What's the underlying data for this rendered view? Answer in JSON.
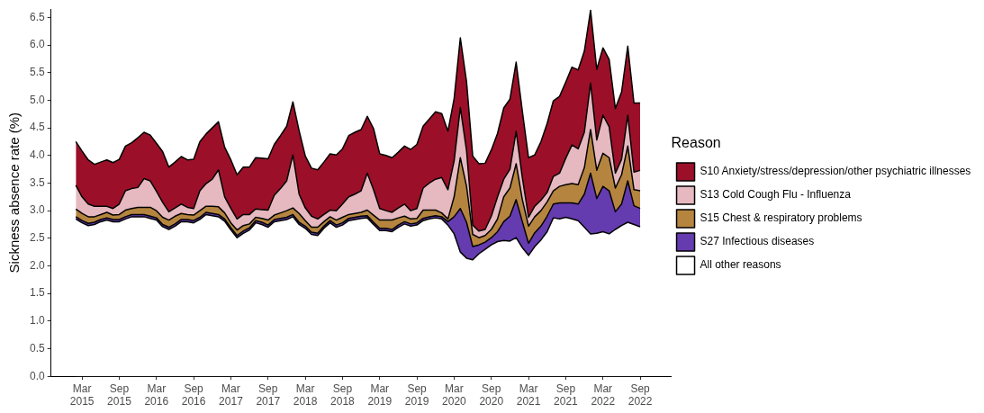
{
  "chart_data": {
    "type": "area",
    "stacked": true,
    "ylabel": "Sickness absence rate (%)",
    "legend_title": "Reason",
    "legend": "right",
    "grid": false,
    "x": [
      "2015-02",
      "2015-03",
      "2015-04",
      "2015-05",
      "2015-06",
      "2015-07",
      "2015-08",
      "2015-09",
      "2015-10",
      "2015-11",
      "2015-12",
      "2016-01",
      "2016-02",
      "2016-03",
      "2016-04",
      "2016-05",
      "2016-06",
      "2016-07",
      "2016-08",
      "2016-09",
      "2016-10",
      "2016-11",
      "2016-12",
      "2017-01",
      "2017-02",
      "2017-03",
      "2017-04",
      "2017-05",
      "2017-06",
      "2017-07",
      "2017-08",
      "2017-09",
      "2017-10",
      "2017-11",
      "2017-12",
      "2018-01",
      "2018-02",
      "2018-03",
      "2018-04",
      "2018-05",
      "2018-06",
      "2018-07",
      "2018-08",
      "2018-09",
      "2018-10",
      "2018-11",
      "2018-12",
      "2019-01",
      "2019-02",
      "2019-03",
      "2019-04",
      "2019-05",
      "2019-06",
      "2019-07",
      "2019-08",
      "2019-09",
      "2019-10",
      "2019-11",
      "2019-12",
      "2020-01",
      "2020-02",
      "2020-03",
      "2020-04",
      "2020-05",
      "2020-06",
      "2020-07",
      "2020-08",
      "2020-09",
      "2020-10",
      "2020-11",
      "2020-12",
      "2021-01",
      "2021-02",
      "2021-03",
      "2021-04",
      "2021-05",
      "2021-06",
      "2021-07",
      "2021-08",
      "2021-09",
      "2021-10",
      "2021-11",
      "2021-12",
      "2022-01",
      "2022-02",
      "2022-03",
      "2022-04",
      "2022-05",
      "2022-06",
      "2022-07",
      "2022-08",
      "2022-09"
    ],
    "xlim": [
      "2014-10",
      "2023-02"
    ],
    "xticks": [
      {
        "value": "2015-03",
        "label": "Mar 2015"
      },
      {
        "value": "2015-09",
        "label": "Sep 2015"
      },
      {
        "value": "2016-03",
        "label": "Mar 2016"
      },
      {
        "value": "2016-09",
        "label": "Sep 2016"
      },
      {
        "value": "2017-03",
        "label": "Mar 2017"
      },
      {
        "value": "2017-09",
        "label": "Sep 2017"
      },
      {
        "value": "2018-03",
        "label": "Mar 2018"
      },
      {
        "value": "2018-09",
        "label": "Sep 2018"
      },
      {
        "value": "2019-03",
        "label": "Mar 2019"
      },
      {
        "value": "2019-09",
        "label": "Sep 2019"
      },
      {
        "value": "2020-03",
        "label": "Mar 2020"
      },
      {
        "value": "2020-09",
        "label": "Sep 2020"
      },
      {
        "value": "2021-03",
        "label": "Mar 2021"
      },
      {
        "value": "2021-09",
        "label": "Sep 2021"
      },
      {
        "value": "2022-03",
        "label": "Mar 2022"
      },
      {
        "value": "2022-09",
        "label": "Sep 2022"
      }
    ],
    "ylim": [
      0,
      6.65
    ],
    "yticks": [
      {
        "value": 0,
        "label": "0.0"
      },
      0.5,
      {
        "value": 1,
        "label": "1.0"
      },
      1.5,
      {
        "value": 2,
        "label": "2.0"
      },
      2.5,
      {
        "value": 3,
        "label": "3.0"
      },
      3.5,
      {
        "value": 4,
        "label": "4.0"
      },
      4.5,
      {
        "value": 5,
        "label": "5.0"
      },
      5.5,
      {
        "value": 6,
        "label": "6.0"
      },
      6.5
    ],
    "series": [
      {
        "name": "All other reasons",
        "color": "#ffffff",
        "values": [
          2.85,
          2.78,
          2.73,
          2.75,
          2.8,
          2.83,
          2.8,
          2.8,
          2.85,
          2.89,
          2.89,
          2.89,
          2.86,
          2.83,
          2.71,
          2.66,
          2.72,
          2.8,
          2.8,
          2.78,
          2.84,
          2.93,
          2.91,
          2.89,
          2.81,
          2.65,
          2.51,
          2.59,
          2.65,
          2.78,
          2.75,
          2.7,
          2.8,
          2.82,
          2.84,
          2.89,
          2.75,
          2.68,
          2.57,
          2.55,
          2.68,
          2.78,
          2.7,
          2.74,
          2.82,
          2.84,
          2.86,
          2.87,
          2.75,
          2.64,
          2.64,
          2.62,
          2.7,
          2.76,
          2.72,
          2.74,
          2.82,
          2.85,
          2.87,
          2.85,
          2.74,
          2.58,
          2.25,
          2.14,
          2.11,
          2.22,
          2.3,
          2.38,
          2.44,
          2.46,
          2.45,
          2.51,
          2.33,
          2.19,
          2.35,
          2.47,
          2.62,
          2.87,
          2.85,
          2.88,
          2.85,
          2.82,
          2.7,
          2.58,
          2.59,
          2.62,
          2.58,
          2.66,
          2.73,
          2.79,
          2.75,
          2.71
        ]
      },
      {
        "name": "S27 Infectious diseases",
        "color": "#653bb0",
        "values": [
          0.04,
          0.04,
          0.04,
          0.04,
          0.04,
          0.04,
          0.04,
          0.04,
          0.04,
          0.04,
          0.04,
          0.04,
          0.04,
          0.04,
          0.04,
          0.04,
          0.04,
          0.04,
          0.04,
          0.04,
          0.04,
          0.04,
          0.04,
          0.04,
          0.04,
          0.04,
          0.04,
          0.04,
          0.04,
          0.04,
          0.04,
          0.04,
          0.04,
          0.04,
          0.04,
          0.04,
          0.04,
          0.04,
          0.04,
          0.04,
          0.04,
          0.04,
          0.04,
          0.04,
          0.04,
          0.04,
          0.04,
          0.04,
          0.04,
          0.04,
          0.04,
          0.04,
          0.04,
          0.04,
          0.04,
          0.04,
          0.04,
          0.04,
          0.04,
          0.04,
          0.06,
          0.31,
          0.79,
          0.65,
          0.24,
          0.16,
          0.13,
          0.13,
          0.18,
          0.34,
          0.45,
          0.69,
          0.47,
          0.22,
          0.25,
          0.25,
          0.28,
          0.25,
          0.29,
          0.26,
          0.29,
          0.3,
          0.6,
          1.1,
          0.63,
          0.82,
          0.78,
          0.32,
          0.39,
          0.75,
          0.34,
          0.33
        ]
      },
      {
        "name": "S15 Chest & respiratory problems",
        "color": "#b5853f",
        "values": [
          0.14,
          0.13,
          0.12,
          0.1,
          0.09,
          0.1,
          0.08,
          0.09,
          0.12,
          0.11,
          0.13,
          0.13,
          0.16,
          0.13,
          0.13,
          0.13,
          0.14,
          0.11,
          0.09,
          0.1,
          0.12,
          0.11,
          0.13,
          0.14,
          0.11,
          0.09,
          0.1,
          0.1,
          0.07,
          0.06,
          0.07,
          0.09,
          0.08,
          0.1,
          0.12,
          0.12,
          0.16,
          0.1,
          0.09,
          0.11,
          0.08,
          0.07,
          0.09,
          0.1,
          0.07,
          0.07,
          0.07,
          0.1,
          0.13,
          0.15,
          0.15,
          0.17,
          0.13,
          0.1,
          0.09,
          0.08,
          0.15,
          0.12,
          0.1,
          0.07,
          0.05,
          0.36,
          0.92,
          0.65,
          0.22,
          0.13,
          0.12,
          0.15,
          0.23,
          0.45,
          0.51,
          0.65,
          0.4,
          0.31,
          0.29,
          0.28,
          0.26,
          0.24,
          0.3,
          0.33,
          0.35,
          0.35,
          0.48,
          0.79,
          0.51,
          0.6,
          0.6,
          0.43,
          0.53,
          0.63,
          0.29,
          0.32
        ]
      },
      {
        "name": "S13 Cold Cough Flu - Influenza",
        "color": "#e6b8c0",
        "values": [
          0.43,
          0.3,
          0.23,
          0.19,
          0.15,
          0.11,
          0.12,
          0.19,
          0.35,
          0.36,
          0.36,
          0.52,
          0.48,
          0.35,
          0.27,
          0.15,
          0.15,
          0.17,
          0.13,
          0.12,
          0.36,
          0.41,
          0.49,
          0.67,
          0.29,
          0.26,
          0.2,
          0.2,
          0.17,
          0.15,
          0.16,
          0.18,
          0.36,
          0.44,
          0.54,
          0.96,
          0.35,
          0.23,
          0.2,
          0.15,
          0.13,
          0.12,
          0.17,
          0.24,
          0.32,
          0.35,
          0.39,
          0.67,
          0.46,
          0.21,
          0.17,
          0.14,
          0.18,
          0.22,
          0.15,
          0.18,
          0.4,
          0.49,
          0.56,
          0.64,
          0.53,
          0.65,
          0.91,
          0.65,
          0.17,
          0.12,
          0.11,
          0.24,
          0.4,
          0.32,
          0.34,
          0.59,
          0.4,
          0.16,
          0.19,
          0.19,
          0.17,
          0.26,
          0.24,
          0.48,
          0.7,
          0.65,
          0.64,
          0.84,
          0.55,
          0.69,
          0.56,
          0.27,
          0.28,
          0.56,
          0.32,
          0.37
        ]
      },
      {
        "name": "S10 Anxiety/stress/depression/other psychiatric illnesses",
        "color": "#9b1028",
        "values": [
          0.79,
          0.83,
          0.8,
          0.76,
          0.8,
          0.84,
          0.83,
          0.81,
          0.81,
          0.83,
          0.9,
          0.84,
          0.83,
          0.87,
          0.92,
          0.81,
          0.83,
          0.86,
          0.86,
          0.89,
          0.89,
          0.9,
          0.93,
          0.87,
          0.9,
          0.88,
          0.8,
          0.86,
          0.86,
          0.93,
          0.93,
          0.93,
          0.92,
          0.96,
          0.99,
          0.96,
          1.15,
          0.94,
          0.87,
          0.89,
          0.95,
          1.02,
          1.01,
          1.0,
          1.11,
          1.12,
          1.11,
          1.03,
          1.11,
          0.99,
          1.0,
          0.99,
          1.01,
          1.05,
          1.11,
          1.16,
          1.12,
          1.16,
          1.22,
          1.16,
          1.06,
          1.13,
          1.26,
          1.25,
          1.25,
          1.22,
          1.2,
          1.2,
          1.15,
          1.29,
          1.27,
          1.25,
          1.2,
          1.08,
          0.93,
          1.06,
          1.25,
          1.37,
          1.39,
          1.38,
          1.41,
          1.43,
          1.47,
          1.32,
          1.28,
          1.22,
          1.22,
          1.17,
          1.22,
          1.25,
          1.25,
          1.22
        ]
      }
    ]
  }
}
